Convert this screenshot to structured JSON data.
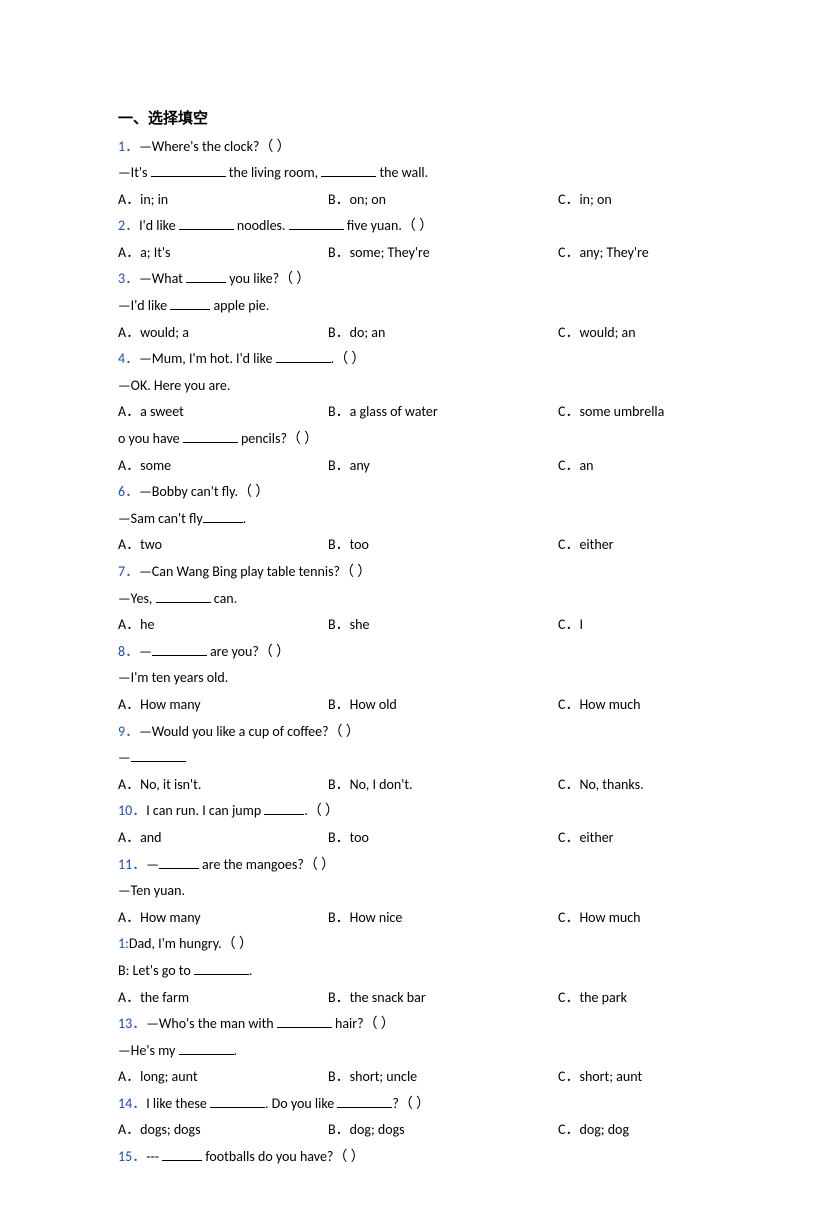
{
  "section_title": "一、选择填空",
  "questions": [
    {
      "num": "1．",
      "prompt_lines": [
        "—Where's the clock?（  ）",
        [
          "—It's ",
          "b-long",
          " the living room, ",
          "b-med",
          " the wall."
        ]
      ],
      "opts": [
        "A．in; in",
        "B．on; on",
        "C．in; on"
      ]
    },
    {
      "num": "2．",
      "prompt_lines": [
        [
          "I'd like ",
          "b-med",
          " noodles. ",
          "b-med",
          " five yuan.（  ）"
        ]
      ],
      "opts": [
        "A．a; It's",
        "B．some; They're",
        "C．any; They're"
      ]
    },
    {
      "num": "3．",
      "prompt_lines": [
        [
          "—What ",
          "b-short",
          " you like?（  ）"
        ],
        [
          "—I'd like ",
          "b-short",
          " apple pie."
        ]
      ],
      "opts": [
        "A．would; a",
        "B．do; an",
        "C．would; an"
      ]
    },
    {
      "num": "4．",
      "prompt_lines": [
        [
          "—Mum, I'm hot. I'd like ",
          "b-med",
          ".（  ）"
        ],
        "—OK. Here you are."
      ],
      "opts": [
        "A．a sweet",
        "B．a glass of water",
        "C．some umbrella"
      ]
    },
    {
      "num": "",
      "prompt_lines": [
        [
          "o you have ",
          "b-med",
          " pencils?（  ）"
        ]
      ],
      "opts": [
        "A．some",
        "B．any",
        "C．an"
      ]
    },
    {
      "num": "6．",
      "prompt_lines": [
        "—Bobby can't fly.（  ）",
        [
          "—Sam can't fly",
          "b-short",
          "."
        ]
      ],
      "opts": [
        "A．two",
        "B．too",
        "C．either"
      ]
    },
    {
      "num": "7．",
      "prompt_lines": [
        "—Can Wang Bing play table tennis?（  ）",
        [
          "—Yes, ",
          "b-med",
          " can."
        ]
      ],
      "opts": [
        "A．he",
        "B．she",
        "C．I"
      ]
    },
    {
      "num": "8．",
      "prompt_lines": [
        [
          "—",
          "b-med",
          " are you?（  ）"
        ],
        "—I'm ten years old."
      ],
      "opts": [
        "A．How many",
        "B．How old",
        "C．How much"
      ]
    },
    {
      "num": "9．",
      "prompt_lines": [
        "—Would you like a cup of coffee?（  ）",
        [
          "—",
          "b-med",
          ""
        ]
      ],
      "opts": [
        "A．No, it isn't.",
        "B．No, I don't.",
        "C．No, thanks."
      ]
    },
    {
      "num": "10．",
      "prompt_lines": [
        [
          "I can run. I can jump ",
          "b-short",
          ".（  ）"
        ]
      ],
      "opts": [
        "A．and",
        "B．too",
        "C．either"
      ]
    },
    {
      "num": "11．",
      "prompt_lines": [
        [
          "—",
          "b-short",
          " are the mangoes?（  ）"
        ],
        "—Ten yuan."
      ],
      "opts": [
        "A．How many",
        "B．How nice",
        "C．How much"
      ]
    },
    {
      "num": "1:",
      "prompt_lines": [
        "Dad, I'm hungry.（  ）",
        [
          "B: Let's go to ",
          "b-med",
          "."
        ]
      ],
      "opts": [
        "A．the farm",
        "B．the snack bar",
        "C．the park"
      ]
    },
    {
      "num": "13．",
      "prompt_lines": [
        [
          "—Who's the man with ",
          "b-med",
          " hair?（  ）"
        ],
        [
          "—He's my ",
          "b-med",
          "."
        ]
      ],
      "opts": [
        "A．long; aunt",
        "B．short; uncle",
        "C．short; aunt"
      ]
    },
    {
      "num": "14．",
      "prompt_lines": [
        [
          "I like these ",
          "b-med",
          ". Do you like ",
          "b-med",
          "?（  ）"
        ]
      ],
      "opts": [
        "A．dogs; dogs",
        "B．dog; dogs",
        "C．dog; dog"
      ]
    },
    {
      "num": "15．",
      "prompt_lines": [
        [
          "--- ",
          "b-short",
          " footballs do you have?（  ）"
        ]
      ],
      "opts": []
    }
  ]
}
